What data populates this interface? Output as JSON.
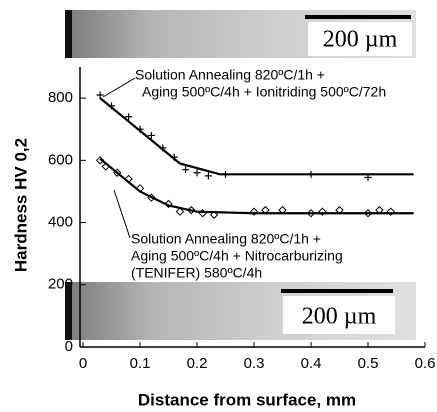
{
  "chart_data": {
    "type": "scatter",
    "x_label": "Distance from surface, mm",
    "y_label": "Hardness HV 0,2",
    "xlim": [
      0,
      0.6
    ],
    "xticks": [
      0,
      0.1,
      0.2,
      0.3,
      0.4,
      0.5,
      0.6
    ],
    "ylim": [
      0,
      900
    ],
    "yticks": [
      0,
      200,
      400,
      600,
      800
    ],
    "annotations": [
      [
        "Solution Annealing 820ºC/1h +",
        "Aging 500ºC/4h + Ionitriding 500ºC/72h"
      ],
      [
        "Solution Annealing 820ºC/1h +",
        "Aging 500ºC/4h + Nitrocarburizing",
        "(TENIFER) 580ºC/4h"
      ]
    ],
    "scale_bars": [
      "200 µm",
      "200 µm"
    ],
    "series": [
      {
        "style": "plus",
        "color": "#000000",
        "x": [
          0.03,
          0.05,
          0.08,
          0.1,
          0.12,
          0.14,
          0.16,
          0.18,
          0.2,
          0.22,
          0.25,
          0.4,
          0.5
        ],
        "values": [
          810,
          775,
          740,
          700,
          680,
          640,
          610,
          570,
          560,
          550,
          555,
          555,
          545
        ]
      },
      {
        "style": "line",
        "color": "#000000",
        "x": [
          0.03,
          0.17,
          0.24,
          0.58
        ],
        "values": [
          800,
          590,
          555,
          555
        ]
      },
      {
        "style": "diamond",
        "color": "#000000",
        "x": [
          0.03,
          0.04,
          0.06,
          0.08,
          0.1,
          0.12,
          0.15,
          0.17,
          0.19,
          0.21,
          0.23,
          0.3,
          0.32,
          0.35,
          0.4,
          0.42,
          0.45,
          0.5,
          0.52,
          0.54
        ],
        "values": [
          600,
          580,
          560,
          540,
          510,
          480,
          460,
          435,
          440,
          430,
          425,
          435,
          440,
          440,
          430,
          435,
          440,
          430,
          440,
          435
        ]
      },
      {
        "style": "line",
        "color": "#000000",
        "x": [
          0.03,
          0.1,
          0.15,
          0.2,
          0.3,
          0.58
        ],
        "values": [
          605,
          500,
          455,
          435,
          430,
          430
        ]
      }
    ]
  }
}
